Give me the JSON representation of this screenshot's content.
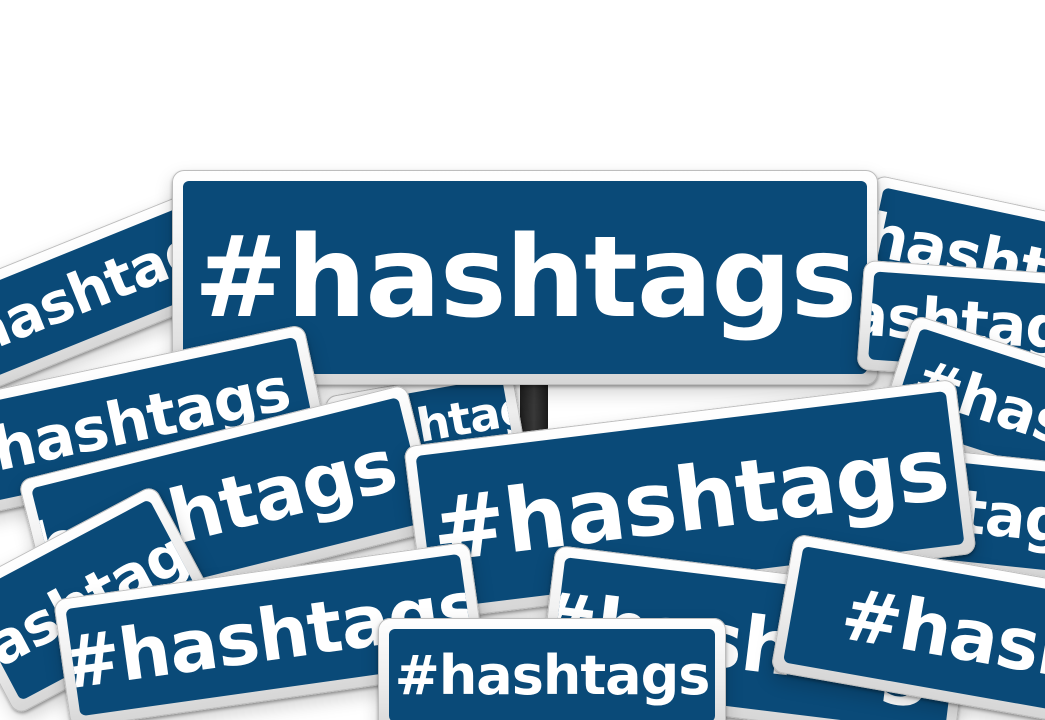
{
  "scene": {
    "description_free": true,
    "sign_text": "#hashtags",
    "background_color": "#ffffff",
    "panel_color": "#0a4a78",
    "frame_color": "#e6e6e6",
    "text_color": "#ffffff"
  },
  "signs": {
    "main": "#hashtags",
    "left_upper": "#hashtags",
    "left_mid": "#hashtags",
    "left_lower": "#hashtags",
    "center_left": "#hashtags",
    "center_back": "#hashtags",
    "center_big": "#hashtags",
    "right_upper": "#hashtags",
    "right_mid": "#hashtags",
    "right_lower": "#hashtags",
    "right_back": "#hashtags",
    "bottom_left": "#hashtags",
    "bottom_left_mid": "#hashtags",
    "bottom_center": "#hashtags",
    "bottom_right": "#hashtags",
    "bottom_far_right": "#hashtags"
  }
}
